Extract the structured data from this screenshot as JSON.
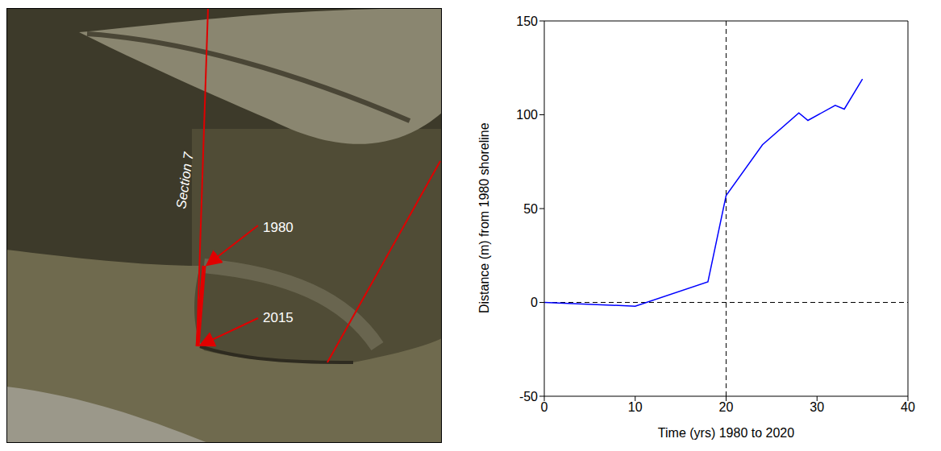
{
  "photo": {
    "section_label": "Section 7",
    "marks": [
      "1980",
      "2015"
    ]
  },
  "chart_data": {
    "type": "line",
    "x_label": "Time (yrs) 1980 to 2020",
    "y_label": "Distance (m) from 1980 shoreline",
    "x": [
      0,
      10,
      18,
      20,
      24,
      28,
      29,
      32,
      33,
      35
    ],
    "series": [
      {
        "name": "Distance",
        "color": "#0000ff",
        "values": [
          0,
          -2,
          11,
          57,
          84,
          101,
          97,
          105,
          103,
          119
        ]
      }
    ],
    "xlim": [
      0,
      40
    ],
    "xticks": [
      0,
      10,
      20,
      30,
      40
    ],
    "ylim": [
      -50,
      150
    ],
    "yticks": [
      -50,
      0,
      50,
      100,
      150
    ],
    "vlines": [
      20
    ],
    "hlines": [
      0
    ],
    "grid": false
  }
}
